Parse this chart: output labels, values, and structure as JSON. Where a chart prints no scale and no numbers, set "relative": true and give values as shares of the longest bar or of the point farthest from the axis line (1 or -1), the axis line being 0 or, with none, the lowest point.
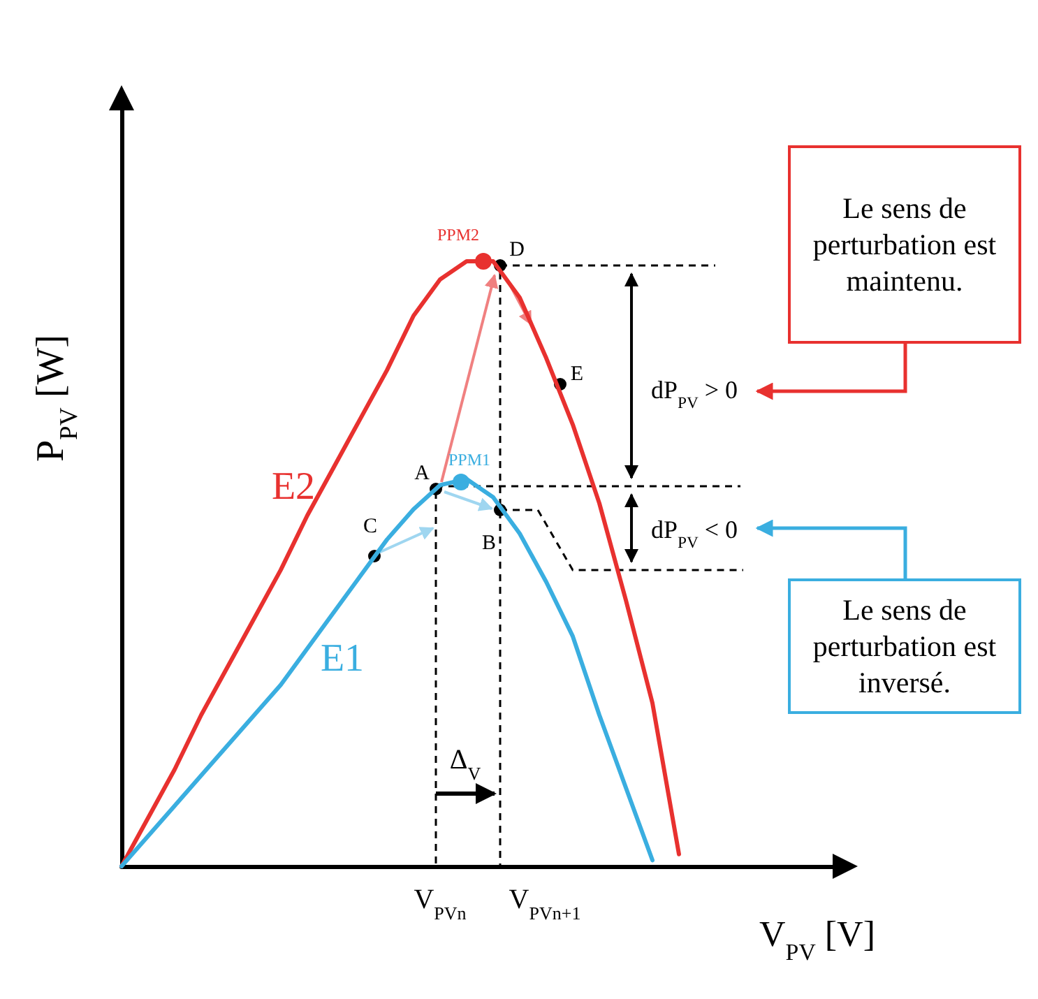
{
  "chart_data": {
    "type": "line",
    "relative": true,
    "xlabel": "V$_{PV}$ [V]",
    "ylabel": "P$_{PV}$ [W]",
    "categories": [
      null,
      null,
      null,
      null,
      null,
      null,
      null,
      null,
      null,
      null,
      null,
      null,
      null,
      null,
      null,
      null,
      null,
      null,
      null,
      null,
      null,
      null,
      null,
      null,
      null,
      null,
      null,
      null
    ],
    "series": [
      {
        "name": "E2",
        "color": "#e8312f",
        "values": [
          0,
          0.08,
          0.16,
          0.25,
          0.33,
          0.41,
          0.49,
          0.58,
          0.66,
          0.74,
          0.82,
          0.91,
          0.97,
          1,
          1,
          0.94,
          0.84,
          0.73,
          0.6,
          0.44,
          0.27,
          0.02,
          null,
          null,
          null,
          null,
          null,
          null
        ]
      },
      {
        "name": "E1",
        "color": "#3aaee0",
        "values": [
          0,
          0.05,
          0.1,
          0.15,
          0.2,
          0.25,
          0.3,
          0.36,
          0.42,
          0.48,
          0.54,
          0.59,
          0.63,
          0.64,
          0.61,
          0.55,
          0.47,
          0.38,
          0.25,
          0.13,
          0.01,
          null,
          null,
          null,
          null,
          null,
          null,
          null
        ]
      }
    ],
    "annotations": [
      "PPM2",
      "PPM1",
      "A",
      "B",
      "C",
      "D",
      "E",
      "dP$_{PV}$ > 0",
      "dP$_{PV}$ < 0",
      "Δ$_{V}$",
      "V$_{PVn}$",
      "V$_{PVn+1}$",
      "Le sens de perturbation est maintenu.",
      "Le sens de perturbation est inversé."
    ]
  }
}
